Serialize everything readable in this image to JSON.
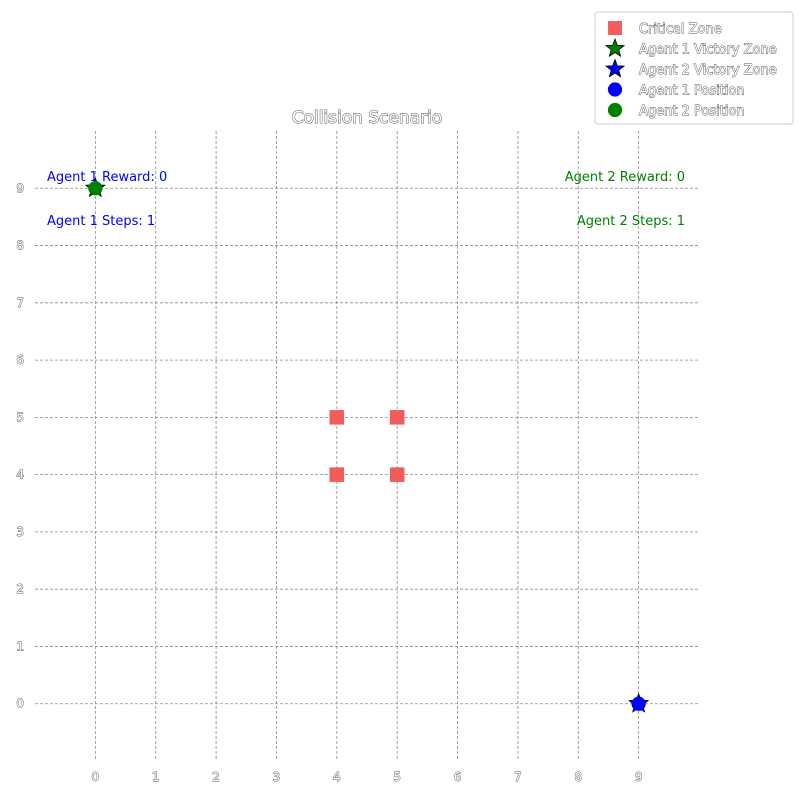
{
  "chart_data": {
    "type": "scatter",
    "title": "Collision Scenario",
    "xlim": [
      -1,
      10
    ],
    "ylim": [
      -1,
      10
    ],
    "x_ticks": [
      0,
      1,
      2,
      3,
      4,
      5,
      6,
      7,
      8,
      9
    ],
    "y_ticks": [
      0,
      1,
      2,
      3,
      4,
      5,
      6,
      7,
      8,
      9
    ],
    "grid": true,
    "legend_position": "top-right",
    "series": [
      {
        "name": "Critical Zone",
        "marker": "square",
        "color": "#f05454",
        "points": [
          [
            4,
            4
          ],
          [
            5,
            4
          ],
          [
            4,
            5
          ],
          [
            5,
            5
          ]
        ]
      },
      {
        "name": "Agent 1 Victory Zone",
        "marker": "star",
        "color": "#008000",
        "points": [
          [
            0,
            9
          ]
        ]
      },
      {
        "name": "Agent 2 Victory Zone",
        "marker": "star",
        "color": "#0000ff",
        "points": [
          [
            9,
            0
          ]
        ]
      },
      {
        "name": "Agent 1 Position",
        "marker": "circle",
        "color": "#0000ff",
        "points": [
          [
            9,
            0
          ]
        ]
      },
      {
        "name": "Agent 2 Position",
        "marker": "circle",
        "color": "#008000",
        "points": [
          [
            0,
            9
          ]
        ]
      }
    ],
    "annotations": [
      {
        "text": "Agent 1 Reward: 0",
        "color": "#0000ff",
        "align": "left",
        "row": 0
      },
      {
        "text": "Agent 1 Steps: 1",
        "color": "#0000ff",
        "align": "left",
        "row": 1
      },
      {
        "text": "Agent 2 Reward: 0",
        "color": "#008000",
        "align": "right",
        "row": 0
      },
      {
        "text": "Agent 2 Steps: 1",
        "color": "#008000",
        "align": "right",
        "row": 1
      }
    ]
  }
}
